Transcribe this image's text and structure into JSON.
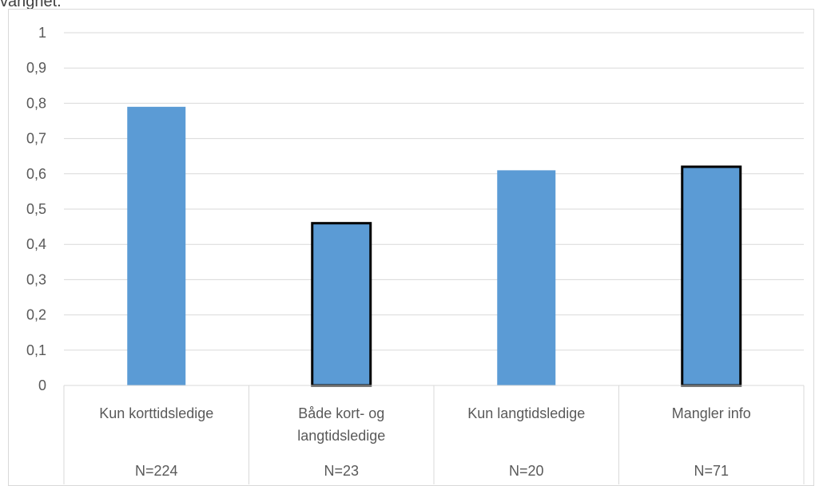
{
  "header_fragment": "varighet.",
  "chart_data": {
    "type": "bar",
    "categories": [
      [
        "Kun korttidsledige"
      ],
      [
        "Både kort- og",
        "langtidsledige"
      ],
      [
        "Kun langtidsledige"
      ],
      [
        "Mangler info"
      ]
    ],
    "n_labels": [
      "N=224",
      "N=23",
      "N=20",
      "N=71"
    ],
    "values": [
      0.79,
      0.46,
      0.61,
      0.62
    ],
    "outlined": [
      false,
      true,
      false,
      true
    ],
    "ylim": [
      0,
      1
    ],
    "yticks": [
      "0",
      "0,1",
      "0,2",
      "0,3",
      "0,4",
      "0,5",
      "0,6",
      "0,7",
      "0,8",
      "0,9",
      "1"
    ],
    "bar_color": "#5b9bd5",
    "outline_color": "#000000",
    "grid": true,
    "legend": "none"
  }
}
